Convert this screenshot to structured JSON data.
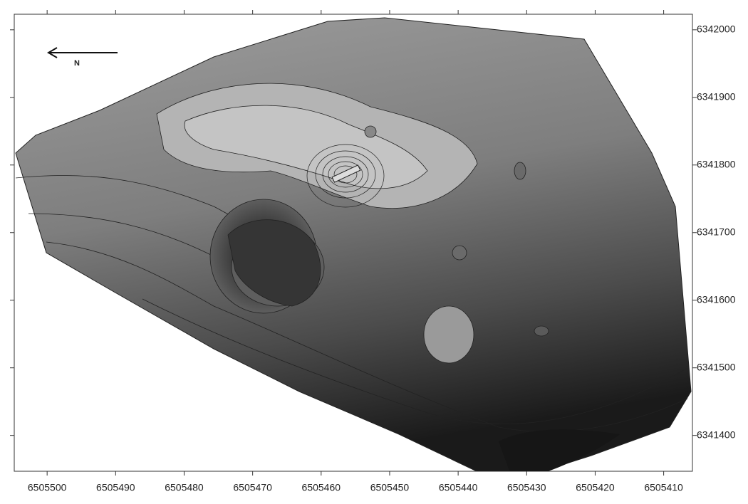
{
  "chart_data": {
    "type": "contour",
    "north_label": "N",
    "xlim": [
      6505504.8,
      6505405.8
    ],
    "xticks": [
      6505500,
      6505490,
      6505480,
      6505470,
      6505460,
      6505450,
      6505440,
      6505430,
      6505420,
      6505410
    ],
    "ylim": [
      6341347,
      6342023
    ],
    "yticks": [
      6342000,
      6341900,
      6341800,
      6341700,
      6341600,
      6341500,
      6341400
    ]
  }
}
